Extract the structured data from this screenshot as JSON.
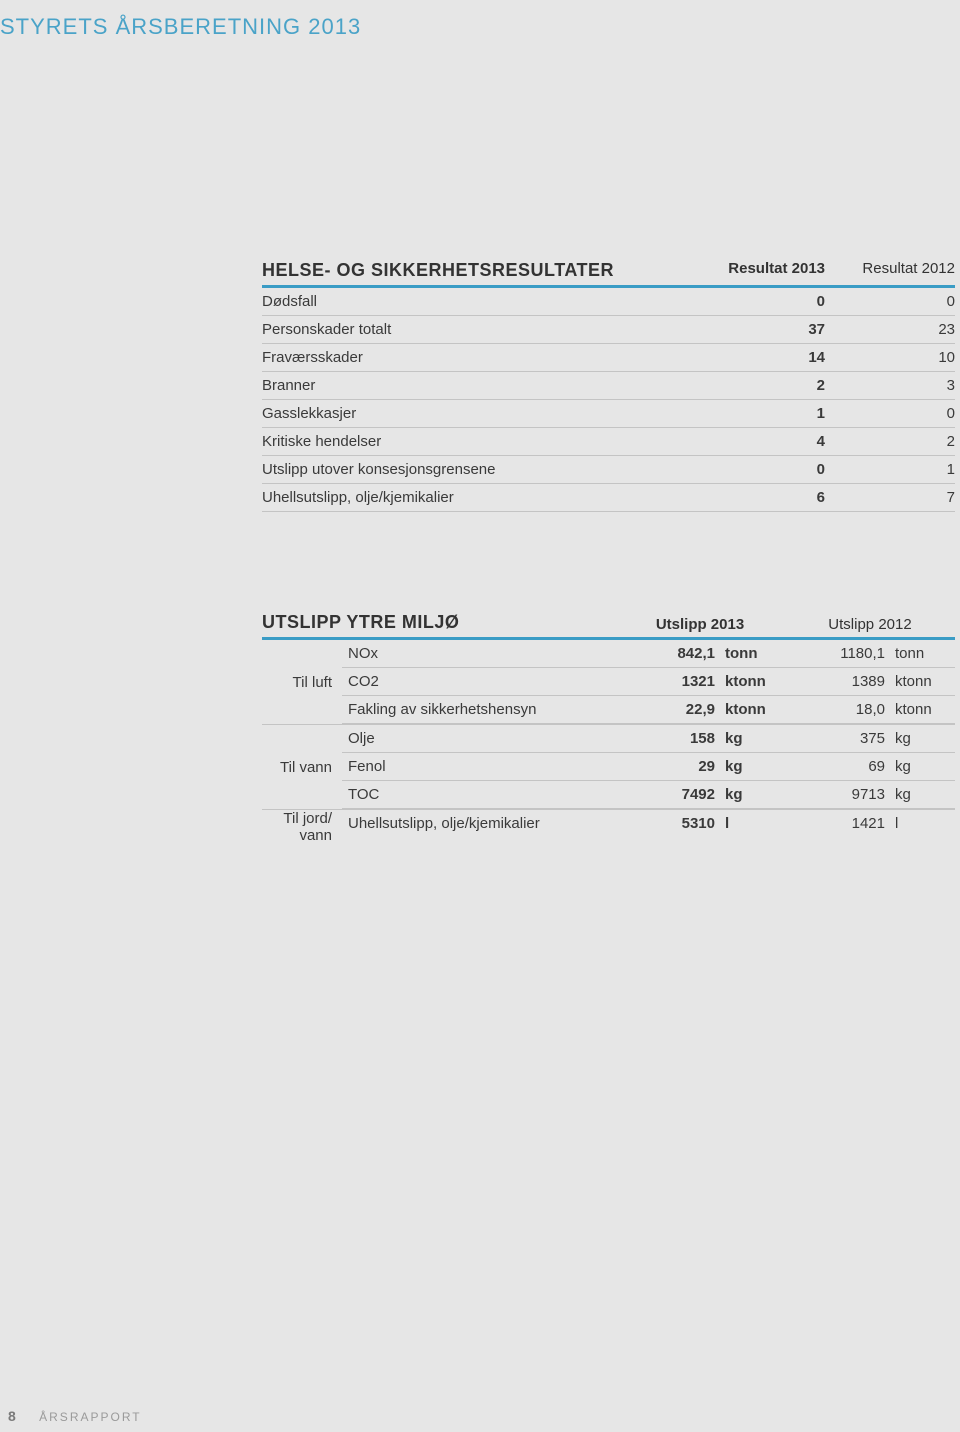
{
  "header": "STYRETS ÅRSBERETNING 2013",
  "hse_table": {
    "title": "HELSE- OG SIKKERHETSRESULTATER",
    "col_2013": "Resultat 2013",
    "col_2012": "Resultat 2012",
    "rows": [
      {
        "label": "Dødsfall",
        "v2013": "0",
        "v2012": "0"
      },
      {
        "label": "Personskader totalt",
        "v2013": "37",
        "v2012": "23"
      },
      {
        "label": "Fraværsskader",
        "v2013": "14",
        "v2012": "10"
      },
      {
        "label": "Branner",
        "v2013": "2",
        "v2012": "3"
      },
      {
        "label": "Gasslekkasjer",
        "v2013": "1",
        "v2012": "0"
      },
      {
        "label": "Kritiske hendelser",
        "v2013": "4",
        "v2012": "2"
      },
      {
        "label": "Utslipp utover konsesjonsgrensene",
        "v2013": "0",
        "v2012": "1"
      },
      {
        "label": "Uhellsutslipp, olje/kjemikalier",
        "v2013": "6",
        "v2012": "7"
      }
    ]
  },
  "env_table": {
    "title": "UTSLIPP YTRE MILJØ",
    "col_2013": "Utslipp 2013",
    "col_2012": "Utslipp 2012",
    "groups": [
      {
        "category": "Til luft",
        "rows": [
          {
            "label": "NOx",
            "v2013": "842,1",
            "u2013": "tonn",
            "v2012": "1180,1",
            "u2012": "tonn"
          },
          {
            "label": "CO2",
            "v2013": "1321",
            "u2013": "ktonn",
            "v2012": "1389",
            "u2012": "ktonn"
          },
          {
            "label": "Fakling av sikkerhetshensyn",
            "v2013": "22,9",
            "u2013": "ktonn",
            "v2012": "18,0",
            "u2012": "ktonn"
          }
        ]
      },
      {
        "category": "Til vann",
        "rows": [
          {
            "label": "Olje",
            "v2013": "158",
            "u2013": "kg",
            "v2012": "375",
            "u2012": "kg"
          },
          {
            "label": "Fenol",
            "v2013": "29",
            "u2013": "kg",
            "v2012": "69",
            "u2012": "kg"
          },
          {
            "label": "TOC",
            "v2013": "7492",
            "u2013": "kg",
            "v2012": "9713",
            "u2012": "kg"
          }
        ]
      },
      {
        "category": "Til jord/\nvann",
        "rows": [
          {
            "label": "Uhellsutslipp, olje/kjemikalier",
            "v2013": "5310",
            "u2013": "l",
            "v2012": "1421",
            "u2012": "l"
          }
        ]
      }
    ]
  },
  "footer": {
    "page_no": "8",
    "label": "ÅRSRAPPORT"
  },
  "colors": {
    "accent": "#3a9cc5",
    "header_text": "#4aa3c8",
    "bg": "#e6e6e6",
    "border": "#c4c4c4"
  }
}
